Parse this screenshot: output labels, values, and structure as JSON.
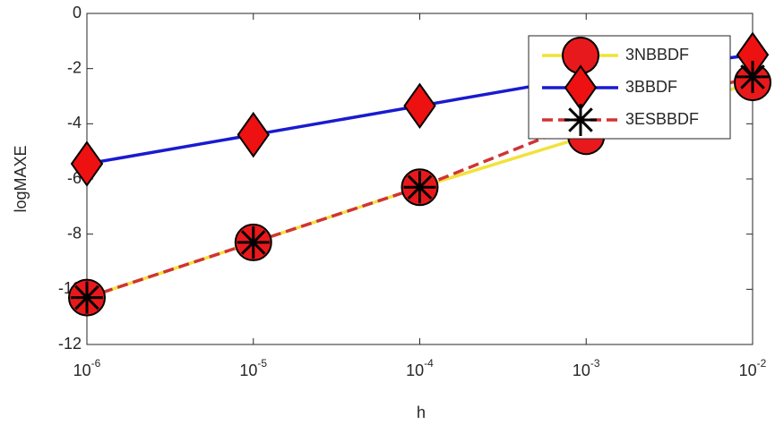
{
  "chart_data": {
    "type": "line",
    "xlabel": "h",
    "ylabel": "logMAXE",
    "xscale": "log",
    "x": [
      1e-06,
      1e-05,
      0.0001,
      0.001,
      0.01
    ],
    "xlim": [
      1e-06,
      0.01
    ],
    "xticks": [
      {
        "value": 1e-06,
        "label": "10-6"
      },
      {
        "value": 1e-05,
        "label": "10-5"
      },
      {
        "value": 0.0001,
        "label": "10-4"
      },
      {
        "value": 0.001,
        "label": "10-3"
      },
      {
        "value": 0.01,
        "label": "10-2"
      }
    ],
    "ylim": [
      -12,
      0
    ],
    "yticks": [
      -12,
      -10,
      -8,
      -6,
      -4,
      -2,
      0
    ],
    "legend": "upper right",
    "series": [
      {
        "name": "3NBBDF",
        "color": "#f2e23a",
        "marker": "circle",
        "values": [
          -10.3,
          -8.3,
          -6.3,
          -4.45,
          -2.5
        ]
      },
      {
        "name": "3BBDF",
        "color": "#1a1ad0",
        "marker": "diamond",
        "values": [
          -5.45,
          -4.4,
          -3.35,
          -2.3,
          -1.5
        ]
      },
      {
        "name": "3ESBBDF",
        "color": "#d03434",
        "marker": "asterisk",
        "dashed": true,
        "values": [
          -10.3,
          -8.3,
          -6.3,
          -3.9,
          -2.3
        ]
      }
    ]
  }
}
